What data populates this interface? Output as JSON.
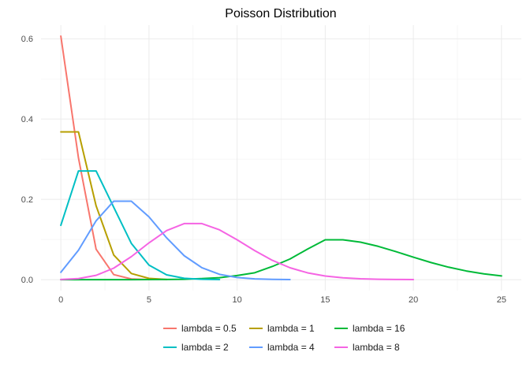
{
  "chart_data": {
    "type": "line",
    "title": "Poisson Distribution",
    "xlabel": "",
    "ylabel": "",
    "xlim": [
      0,
      25
    ],
    "ylim": [
      0,
      0.6065
    ],
    "x_ticks": [
      0,
      5,
      10,
      15,
      20,
      25
    ],
    "y_ticks": [
      0.0,
      0.2,
      0.4,
      0.6
    ],
    "x_tick_labels": [
      "0",
      "5",
      "10",
      "15",
      "20",
      "25"
    ],
    "y_tick_labels": [
      "0.0",
      "0.2",
      "0.4",
      "0.6"
    ],
    "grid": true,
    "legend_position": "bottom",
    "x": [
      0,
      1,
      2,
      3,
      4,
      5,
      6,
      7,
      8,
      9,
      10,
      11,
      12,
      13,
      14,
      15,
      16,
      17,
      18,
      19,
      20,
      21,
      22,
      23,
      24,
      25
    ],
    "series": [
      {
        "name": "lambda = 0.5",
        "color": "#F8766D",
        "points": [
          [
            0,
            0.6065
          ],
          [
            1,
            0.3033
          ],
          [
            2,
            0.0758
          ],
          [
            3,
            0.0126
          ],
          [
            4,
            0.0016
          ],
          [
            5,
            0.0002
          ]
        ]
      },
      {
        "name": "lambda = 1",
        "color": "#B79F00",
        "points": [
          [
            0,
            0.3679
          ],
          [
            1,
            0.3679
          ],
          [
            2,
            0.1839
          ],
          [
            3,
            0.0613
          ],
          [
            4,
            0.0153
          ],
          [
            5,
            0.0031
          ],
          [
            6,
            0.0005
          ]
        ]
      },
      {
        "name": "lambda = 16",
        "color": "#00BA38",
        "points": [
          [
            0,
            0.0
          ],
          [
            1,
            0.0
          ],
          [
            2,
            0.0
          ],
          [
            3,
            0.0
          ],
          [
            4,
            0.0
          ],
          [
            5,
            0.0001
          ],
          [
            6,
            0.0004
          ],
          [
            7,
            0.001
          ],
          [
            8,
            0.0026
          ],
          [
            9,
            0.0049
          ],
          [
            10,
            0.0102
          ],
          [
            11,
            0.0171
          ],
          [
            12,
            0.0328
          ],
          [
            13,
            0.0514
          ],
          [
            14,
            0.0762
          ],
          [
            15,
            0.0992
          ],
          [
            16,
            0.0992
          ],
          [
            17,
            0.0934
          ],
          [
            18,
            0.083
          ],
          [
            19,
            0.0699
          ],
          [
            20,
            0.0559
          ],
          [
            21,
            0.0426
          ],
          [
            22,
            0.031
          ],
          [
            23,
            0.0216
          ],
          [
            24,
            0.0144
          ],
          [
            25,
            0.0092
          ]
        ]
      },
      {
        "name": "lambda = 2",
        "color": "#00BFC4",
        "points": [
          [
            0,
            0.1353
          ],
          [
            1,
            0.2707
          ],
          [
            2,
            0.2707
          ],
          [
            3,
            0.1804
          ],
          [
            4,
            0.0902
          ],
          [
            5,
            0.0361
          ],
          [
            6,
            0.012
          ],
          [
            7,
            0.0034
          ],
          [
            8,
            0.0009
          ],
          [
            9,
            0.0002
          ]
        ]
      },
      {
        "name": "lambda = 4",
        "color": "#619CFF",
        "points": [
          [
            0,
            0.0183
          ],
          [
            1,
            0.0733
          ],
          [
            2,
            0.1465
          ],
          [
            3,
            0.1954
          ],
          [
            4,
            0.1954
          ],
          [
            5,
            0.1563
          ],
          [
            6,
            0.1042
          ],
          [
            7,
            0.0595
          ],
          [
            8,
            0.0298
          ],
          [
            9,
            0.0132
          ],
          [
            10,
            0.0053
          ],
          [
            11,
            0.0019
          ],
          [
            12,
            0.0006
          ],
          [
            13,
            0.0002
          ]
        ]
      },
      {
        "name": "lambda = 8",
        "color": "#F564E3",
        "points": [
          [
            0,
            0.0003
          ],
          [
            1,
            0.0027
          ],
          [
            2,
            0.0107
          ],
          [
            3,
            0.0286
          ],
          [
            4,
            0.0573
          ],
          [
            5,
            0.0916
          ],
          [
            6,
            0.1221
          ],
          [
            7,
            0.1396
          ],
          [
            8,
            0.1396
          ],
          [
            9,
            0.1241
          ],
          [
            10,
            0.0993
          ],
          [
            11,
            0.0722
          ],
          [
            12,
            0.0481
          ],
          [
            13,
            0.0296
          ],
          [
            14,
            0.0169
          ],
          [
            15,
            0.009
          ],
          [
            16,
            0.0045
          ],
          [
            17,
            0.0021
          ],
          [
            18,
            0.0009
          ],
          [
            19,
            0.0004
          ],
          [
            20,
            0.0002
          ]
        ]
      }
    ]
  }
}
